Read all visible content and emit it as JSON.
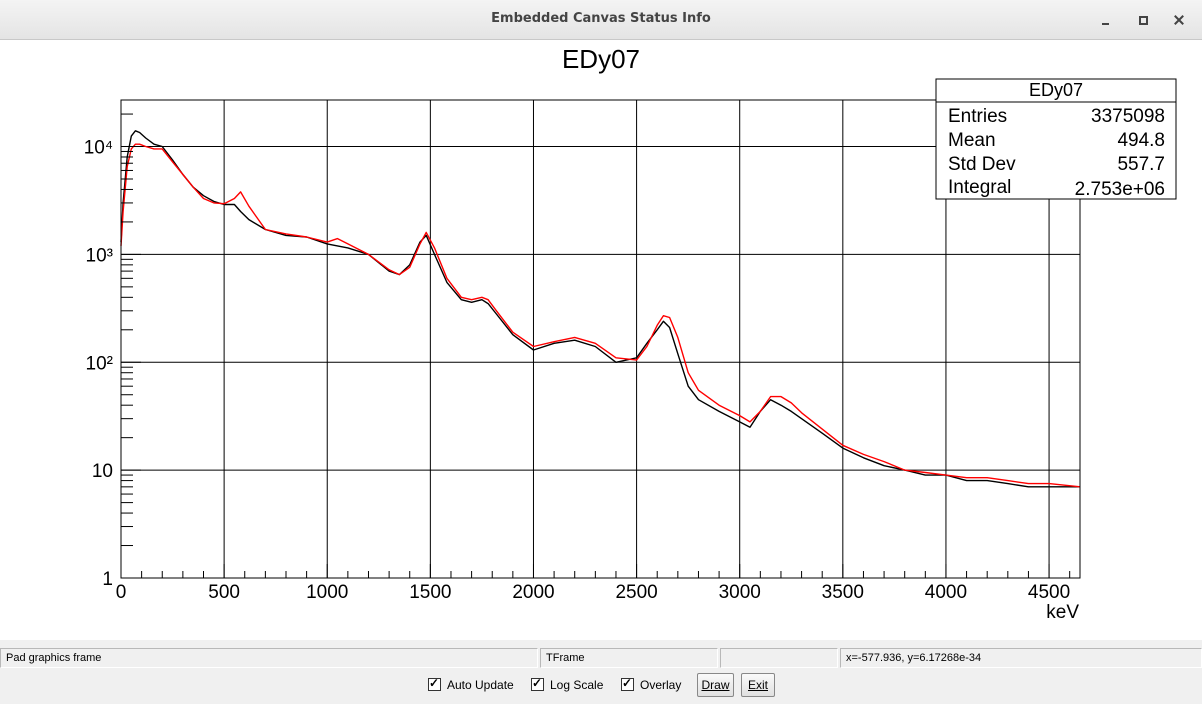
{
  "window": {
    "title": "Embedded Canvas Status Info"
  },
  "stats": {
    "title": "EDy07",
    "rows": [
      {
        "label": "Entries",
        "value": "3375098"
      },
      {
        "label": "Mean",
        "value": "494.8"
      },
      {
        "label": "Std Dev",
        "value": "557.7"
      },
      {
        "label": "Integral",
        "value": "2.753e+06"
      }
    ]
  },
  "statusbar": {
    "cells": [
      "Pad graphics frame",
      "TFrame",
      "",
      "x=-577.936, y=6.17268e-34"
    ]
  },
  "controls": {
    "auto_update": "Auto Update",
    "log_scale": "Log Scale",
    "overlay": "Overlay",
    "draw": "Draw",
    "exit": "Exit"
  },
  "colors": {
    "series_a": "#000000",
    "series_b": "#ff0000"
  },
  "chart_data": {
    "type": "line",
    "title": "EDy07",
    "xlabel": "keV",
    "ylabel": "",
    "xlim": [
      0,
      4650
    ],
    "ylim": [
      1,
      27000
    ],
    "yscale": "log",
    "grid": true,
    "x_ticks": [
      0,
      500,
      1000,
      1500,
      2000,
      2500,
      3000,
      3500,
      4000,
      4500
    ],
    "x_tick_labels": [
      "0",
      "500",
      "1000",
      "1500",
      "2000",
      "2500",
      "3000",
      "3500",
      "4000",
      "4500"
    ],
    "y_ticks": [
      1,
      10,
      100,
      1000,
      10000
    ],
    "y_tick_labels": [
      "1",
      "10",
      "10²",
      "10³",
      "10⁴"
    ],
    "series": [
      {
        "color": "#000000",
        "x": [
          0,
          10,
          30,
          50,
          70,
          90,
          120,
          160,
          200,
          250,
          300,
          350,
          400,
          450,
          500,
          550,
          580,
          620,
          700,
          800,
          900,
          1000,
          1050,
          1100,
          1200,
          1300,
          1350,
          1400,
          1450,
          1480,
          1520,
          1580,
          1650,
          1700,
          1750,
          1780,
          1820,
          1900,
          2000,
          2100,
          2200,
          2300,
          2400,
          2500,
          2550,
          2600,
          2630,
          2660,
          2700,
          2750,
          2800,
          2900,
          3000,
          3050,
          3100,
          3150,
          3200,
          3250,
          3300,
          3400,
          3500,
          3600,
          3700,
          3800,
          3900,
          4000,
          4100,
          4200,
          4300,
          4400,
          4500,
          4650
        ],
        "y": [
          1300,
          3000,
          8000,
          12500,
          14000,
          13500,
          12000,
          10500,
          10000,
          7500,
          5500,
          4200,
          3500,
          3100,
          2900,
          2900,
          2500,
          2100,
          1700,
          1500,
          1450,
          1250,
          1200,
          1150,
          1000,
          700,
          650,
          800,
          1300,
          1500,
          1000,
          550,
          380,
          360,
          380,
          350,
          280,
          180,
          130,
          150,
          160,
          140,
          100,
          110,
          150,
          200,
          240,
          210,
          120,
          60,
          45,
          35,
          28,
          25,
          35,
          45,
          40,
          35,
          30,
          22,
          16,
          13,
          11,
          10,
          9,
          9,
          8,
          8,
          7.5,
          7,
          7,
          7
        ]
      },
      {
        "color": "#ff0000",
        "x": [
          0,
          10,
          30,
          50,
          70,
          90,
          120,
          160,
          200,
          250,
          300,
          350,
          400,
          450,
          500,
          550,
          580,
          620,
          700,
          800,
          900,
          1000,
          1050,
          1100,
          1200,
          1300,
          1350,
          1400,
          1450,
          1480,
          1520,
          1580,
          1650,
          1700,
          1750,
          1780,
          1820,
          1900,
          2000,
          2100,
          2200,
          2300,
          2400,
          2500,
          2550,
          2600,
          2630,
          2660,
          2700,
          2750,
          2800,
          2900,
          3000,
          3050,
          3100,
          3150,
          3200,
          3250,
          3300,
          3400,
          3500,
          3600,
          3700,
          3800,
          3900,
          4000,
          4100,
          4200,
          4300,
          4400,
          4500,
          4650
        ],
        "y": [
          1200,
          2500,
          6500,
          9500,
          10500,
          10500,
          10000,
          9500,
          9500,
          7200,
          5500,
          4200,
          3300,
          3000,
          2950,
          3300,
          3800,
          2800,
          1700,
          1550,
          1450,
          1300,
          1400,
          1250,
          1000,
          720,
          650,
          760,
          1250,
          1600,
          1150,
          600,
          400,
          380,
          400,
          380,
          300,
          190,
          140,
          155,
          170,
          150,
          110,
          105,
          140,
          220,
          270,
          260,
          170,
          80,
          55,
          40,
          32,
          28,
          35,
          48,
          48,
          42,
          34,
          24,
          17,
          14,
          12,
          10,
          9.5,
          9,
          8.5,
          8.5,
          8,
          7.5,
          7.5,
          7
        ]
      }
    ]
  }
}
